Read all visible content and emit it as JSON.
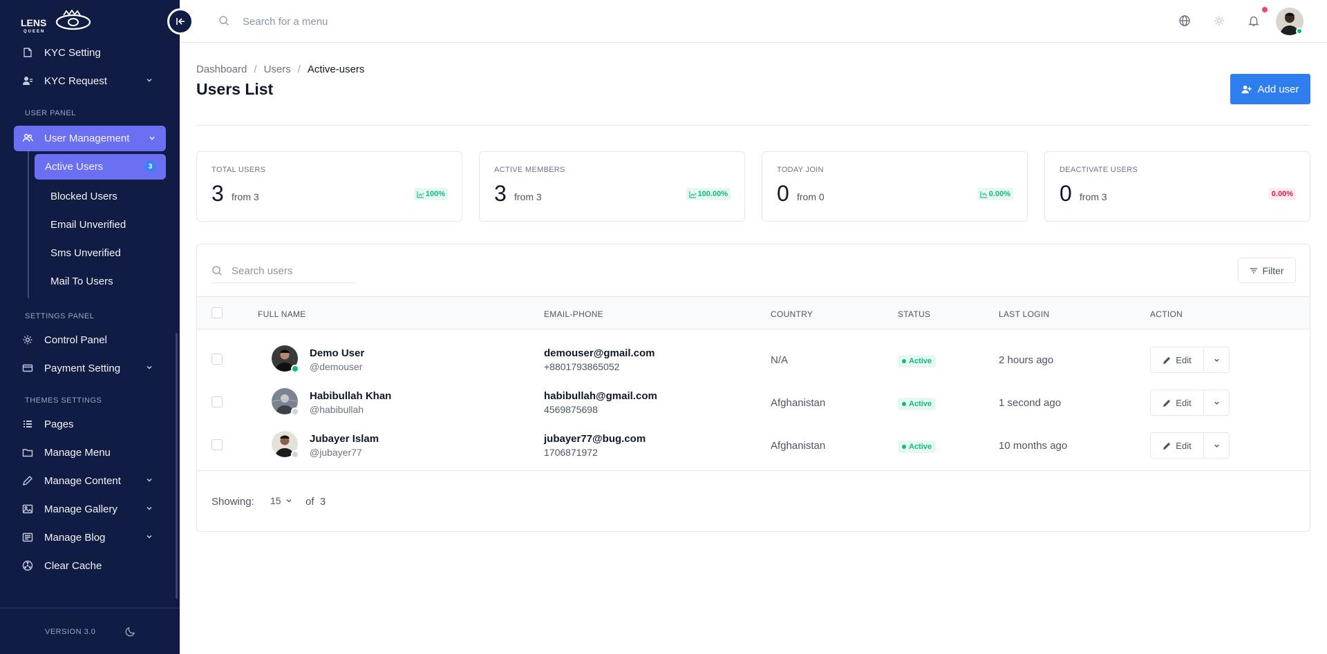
{
  "brand": {
    "logo_text": "LENS",
    "logo_subtext": "QUEEN"
  },
  "sidebar": {
    "items_top": [
      {
        "label": "KYC Setting",
        "icon": "document-icon"
      },
      {
        "label": "KYC Request",
        "icon": "user-card-icon"
      }
    ],
    "section_user": "USER PANEL",
    "user_management": "User Management",
    "sub_items": [
      {
        "label": "Active Users",
        "badge": "3"
      },
      {
        "label": "Blocked Users"
      },
      {
        "label": "Email Unverified"
      },
      {
        "label": "Sms Unverified"
      },
      {
        "label": "Mail To Users"
      }
    ],
    "section_settings": "SETTINGS PANEL",
    "settings_items": [
      {
        "label": "Control Panel"
      },
      {
        "label": "Payment Setting"
      }
    ],
    "section_themes": "THEMES SETTINGS",
    "theme_items": [
      {
        "label": "Pages"
      },
      {
        "label": "Manage Menu"
      },
      {
        "label": "Manage Content"
      },
      {
        "label": "Manage Gallery"
      },
      {
        "label": "Manage Blog"
      },
      {
        "label": "Clear Cache"
      }
    ],
    "version": "VERSION 3.0"
  },
  "topbar": {
    "search_placeholder": "Search for a menu"
  },
  "breadcrumb": [
    "Dashboard",
    "Users",
    "Active-users"
  ],
  "page_title": "Users List",
  "add_user_label": "Add user",
  "stats": [
    {
      "label": "TOTAL USERS",
      "value": "3",
      "from": "from 3",
      "percent": "100%",
      "trend": "up",
      "color": "#10b981"
    },
    {
      "label": "ACTIVE MEMBERS",
      "value": "3",
      "from": "from 3",
      "percent": "100.00%",
      "trend": "up",
      "color": "#10b981"
    },
    {
      "label": "TODAY JOIN",
      "value": "0",
      "from": "from 0",
      "percent": "0.00%",
      "trend": "down",
      "color": "#10b981"
    },
    {
      "label": "DEACTIVATE USERS",
      "value": "0",
      "from": "from 3",
      "percent": "0.00%",
      "trend": "none",
      "color": "#e11d48"
    }
  ],
  "table": {
    "search_placeholder": "Search users",
    "filter_label": "Filter",
    "headers": [
      "FULL NAME",
      "EMAIL-PHONE",
      "COUNTRY",
      "STATUS",
      "LAST LOGIN",
      "ACTION"
    ],
    "rows": [
      {
        "name": "Demo User",
        "username": "@demouser",
        "email": "demouser@gmail.com",
        "phone": "+8801793865052",
        "country": "N/A",
        "status": "Active",
        "last_login": "2 hours ago",
        "online": true
      },
      {
        "name": "Habibullah Khan",
        "username": "@habibullah",
        "email": "habibullah@gmail.com",
        "phone": "4569875698",
        "country": "Afghanistan",
        "status": "Active",
        "last_login": "1 second ago",
        "online": false
      },
      {
        "name": "Jubayer Islam",
        "username": "@jubayer77",
        "email": "jubayer77@bug.com",
        "phone": "1706871972",
        "country": "Afghanistan",
        "status": "Active",
        "last_login": "10 months ago",
        "online": false
      }
    ],
    "edit_label": "Edit",
    "showing_label": "Showing:",
    "per_page": "15",
    "of_label": "of",
    "total": "3"
  }
}
